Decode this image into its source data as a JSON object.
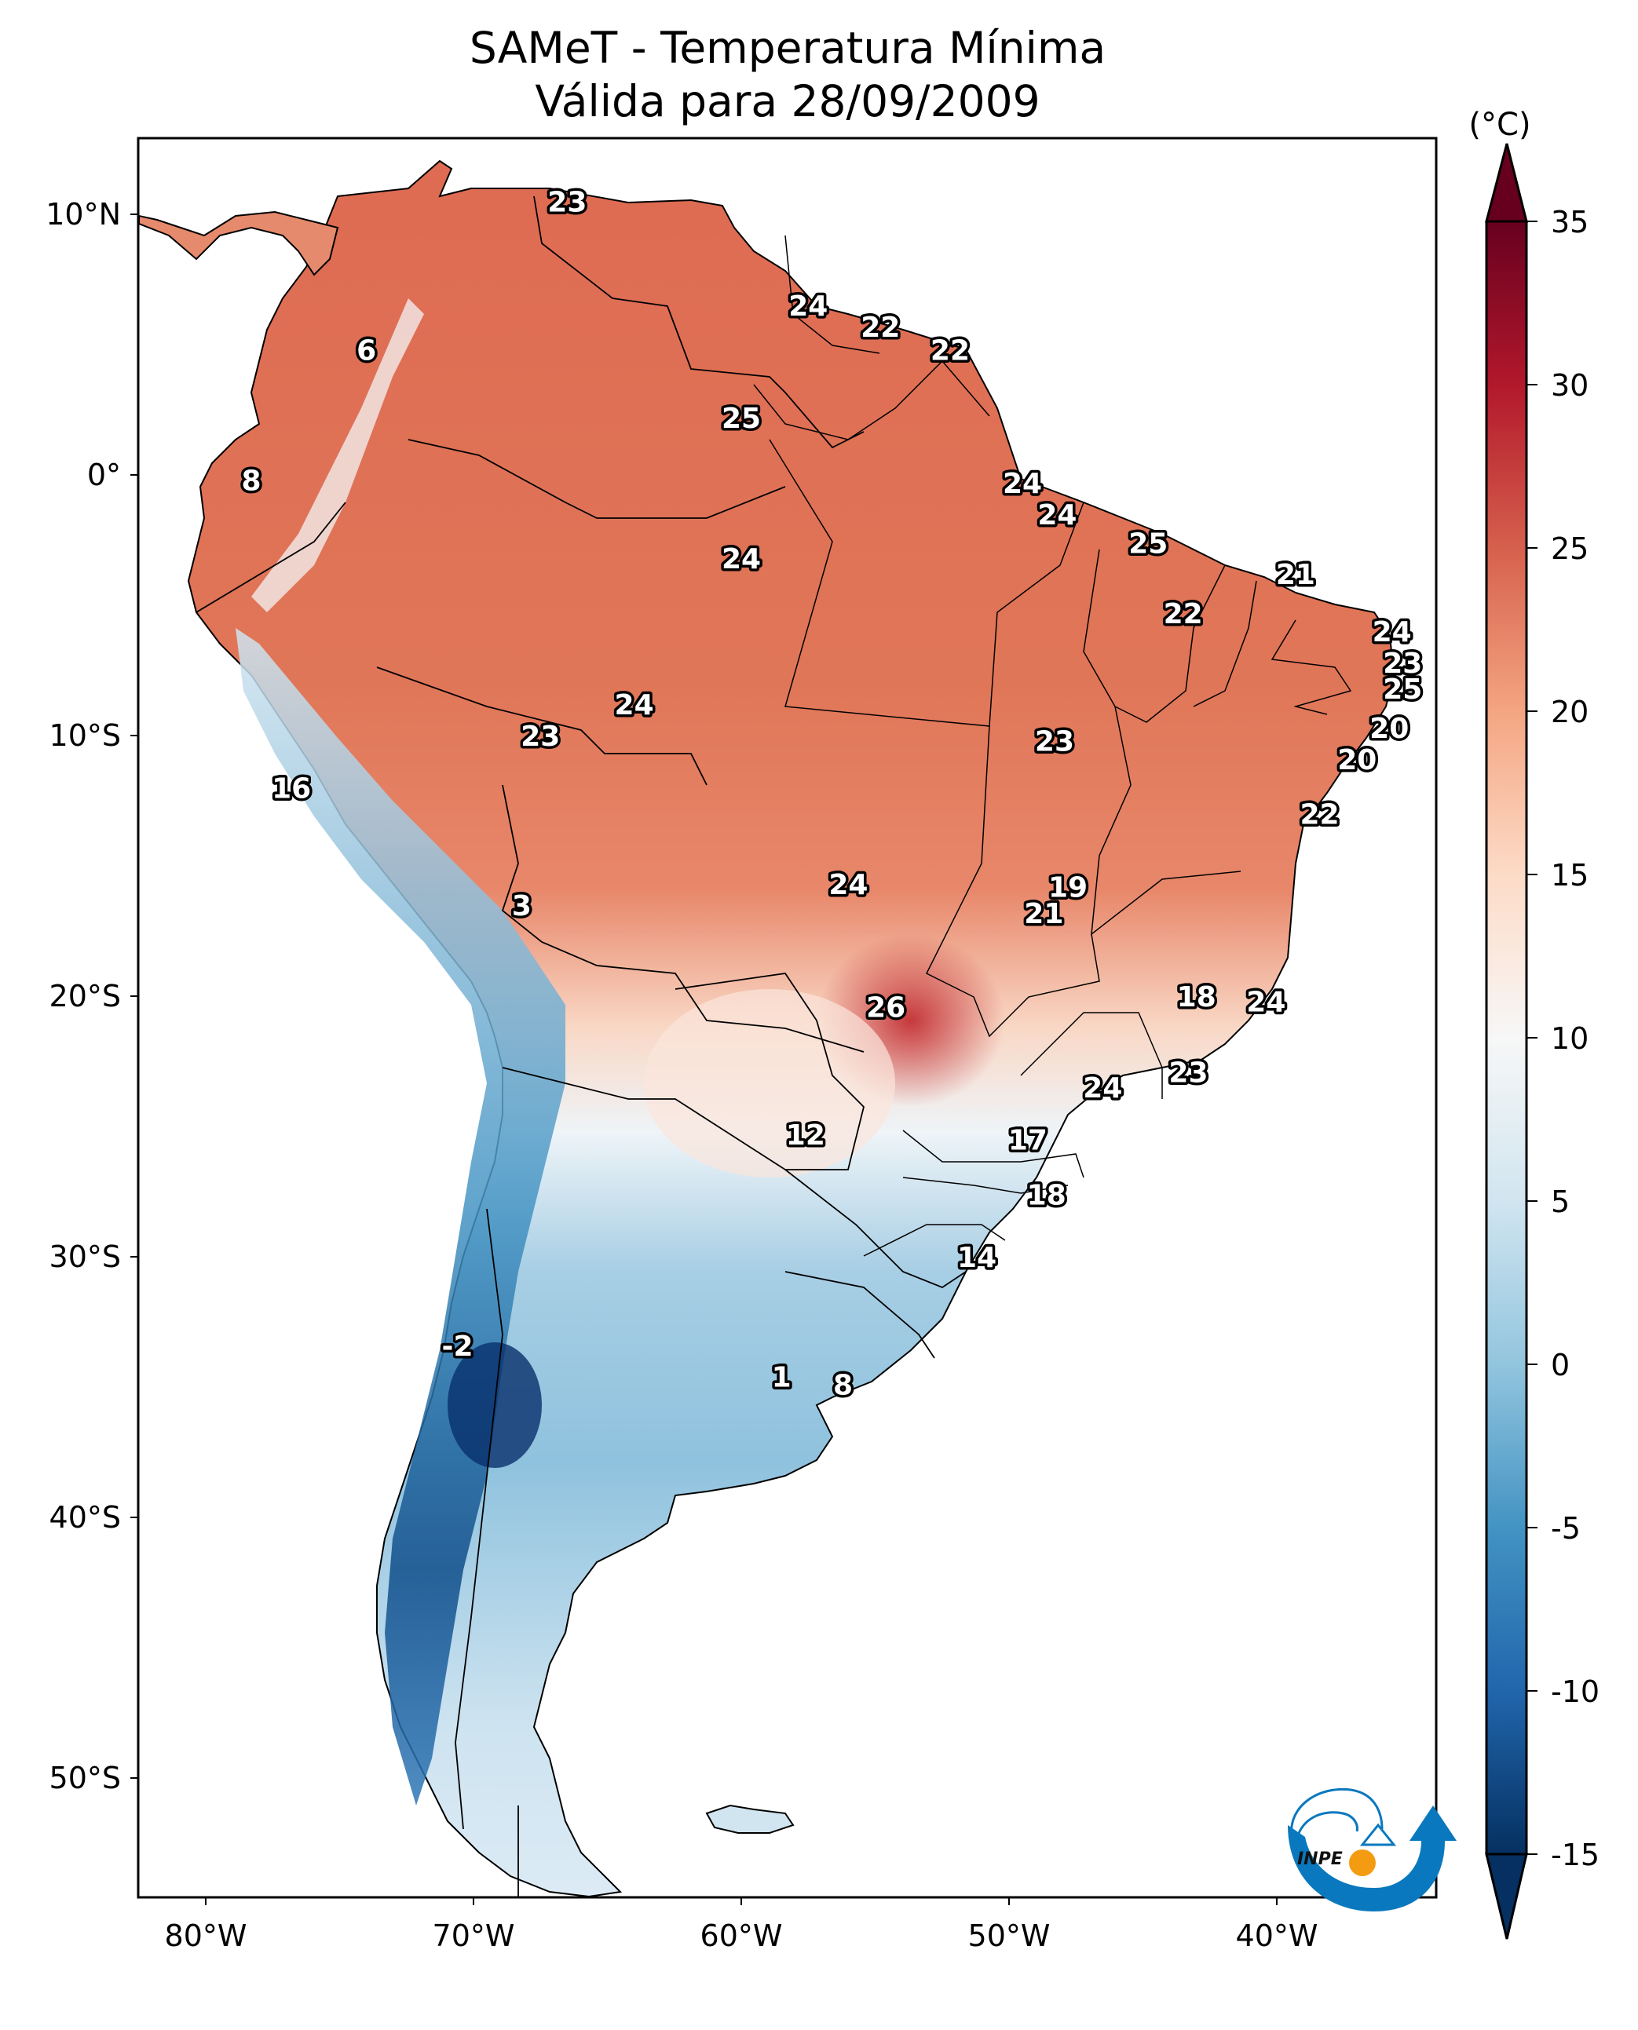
{
  "title": {
    "line1": "SAMeT - Temperatura Mínima",
    "line2": "Válida para 28/09/2009"
  },
  "chart_data": {
    "type": "heatmap",
    "title": "SAMeT - Temperatura Mínima / Válida para 28/09/2009",
    "variable": "Minimum temperature",
    "units": "(°C)",
    "region": "South America",
    "xlabel": "",
    "ylabel": "",
    "x_ticks": [
      "80°W",
      "70°W",
      "60°W",
      "50°W",
      "40°W"
    ],
    "x_tick_values": [
      -80,
      -70,
      -60,
      -50,
      -40
    ],
    "y_ticks": [
      "10°N",
      "0°",
      "10°S",
      "20°S",
      "30°S",
      "40°S",
      "50°S"
    ],
    "y_tick_values": [
      10,
      0,
      -10,
      -20,
      -30,
      -40,
      -50
    ],
    "xlim": [
      -83,
      -34
    ],
    "ylim": [
      -56,
      13
    ],
    "colorbar": {
      "label": "(°C)",
      "ticks": [
        "35",
        "30",
        "25",
        "20",
        "15",
        "10",
        "5",
        "0",
        "-5",
        "-10",
        "-15"
      ],
      "tick_values": [
        35,
        30,
        25,
        20,
        15,
        10,
        5,
        0,
        -5,
        -10,
        -15
      ],
      "range": [
        -15,
        35
      ],
      "extend": "both",
      "colormap": "RdBu_r",
      "colors": [
        "#053061",
        "#2166ac",
        "#4393c3",
        "#92c5de",
        "#d1e5f0",
        "#f7f7f7",
        "#fddbc7",
        "#f4a582",
        "#d6604d",
        "#b2182b",
        "#67001f"
      ]
    },
    "station_labels": [
      {
        "value": "23",
        "lon": -66.5,
        "lat": 10.5
      },
      {
        "value": "6",
        "lon": -74.0,
        "lat": 4.8
      },
      {
        "value": "25",
        "lon": -60.0,
        "lat": 2.2
      },
      {
        "value": "24",
        "lon": -57.5,
        "lat": 6.5
      },
      {
        "value": "22",
        "lon": -54.8,
        "lat": 5.7
      },
      {
        "value": "22",
        "lon": -52.2,
        "lat": 4.8
      },
      {
        "value": "8",
        "lon": -78.3,
        "lat": -0.2
      },
      {
        "value": "24",
        "lon": -49.5,
        "lat": -0.3
      },
      {
        "value": "24",
        "lon": -48.2,
        "lat": -1.5
      },
      {
        "value": "24",
        "lon": -60.0,
        "lat": -3.2
      },
      {
        "value": "25",
        "lon": -44.8,
        "lat": -2.6
      },
      {
        "value": "21",
        "lon": -39.3,
        "lat": -3.8
      },
      {
        "value": "22",
        "lon": -43.5,
        "lat": -5.3
      },
      {
        "value": "24",
        "lon": -35.7,
        "lat": -6.0
      },
      {
        "value": "23",
        "lon": -35.3,
        "lat": -7.2
      },
      {
        "value": "25",
        "lon": -35.3,
        "lat": -8.2
      },
      {
        "value": "20",
        "lon": -35.8,
        "lat": -9.7
      },
      {
        "value": "20",
        "lon": -37.0,
        "lat": -10.9
      },
      {
        "value": "23",
        "lon": -48.3,
        "lat": -10.2
      },
      {
        "value": "24",
        "lon": -64.0,
        "lat": -8.8
      },
      {
        "value": "23",
        "lon": -67.5,
        "lat": -10.0
      },
      {
        "value": "16",
        "lon": -76.8,
        "lat": -12.0
      },
      {
        "value": "22",
        "lon": -38.4,
        "lat": -13.0
      },
      {
        "value": "24",
        "lon": -56.0,
        "lat": -15.7
      },
      {
        "value": "19",
        "lon": -47.8,
        "lat": -15.8
      },
      {
        "value": "21",
        "lon": -48.7,
        "lat": -16.8
      },
      {
        "value": "3",
        "lon": -68.2,
        "lat": -16.5
      },
      {
        "value": "18",
        "lon": -43.0,
        "lat": -20.0
      },
      {
        "value": "24",
        "lon": -40.4,
        "lat": -20.2
      },
      {
        "value": "26",
        "lon": -54.6,
        "lat": -20.4
      },
      {
        "value": "24",
        "lon": -46.5,
        "lat": -23.5
      },
      {
        "value": "23",
        "lon": -43.3,
        "lat": -22.9
      },
      {
        "value": "12",
        "lon": -57.6,
        "lat": -25.3
      },
      {
        "value": "17",
        "lon": -49.3,
        "lat": -25.5
      },
      {
        "value": "18",
        "lon": -48.6,
        "lat": -27.6
      },
      {
        "value": "14",
        "lon": -51.2,
        "lat": -30.0
      },
      {
        "value": "-2",
        "lon": -70.6,
        "lat": -33.4
      },
      {
        "value": "1",
        "lon": -58.5,
        "lat": -34.6
      },
      {
        "value": "8",
        "lon": -56.2,
        "lat": -34.9
      }
    ]
  },
  "logo": {
    "text": "INPE",
    "blue": "#0a78be",
    "orange": "#f39c12"
  }
}
